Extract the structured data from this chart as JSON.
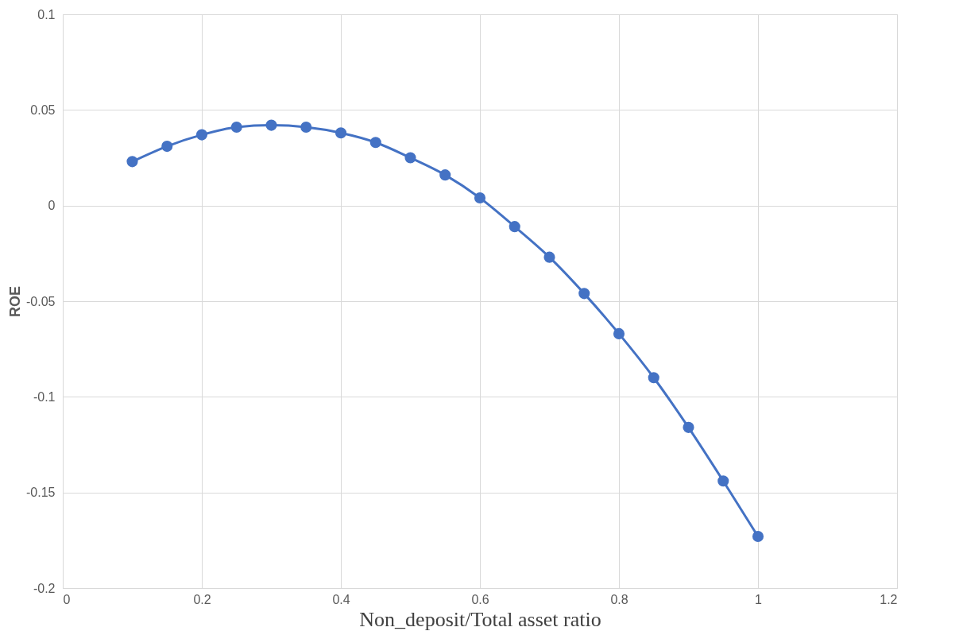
{
  "chart_data": {
    "type": "line",
    "xlabel": "Non_deposit/Total asset ratio",
    "ylabel": "ROE",
    "x": [
      0.1,
      0.15,
      0.2,
      0.25,
      0.3,
      0.35,
      0.4,
      0.45,
      0.5,
      0.55,
      0.6,
      0.65,
      0.7,
      0.75,
      0.8,
      0.85,
      0.9,
      0.95,
      1.0
    ],
    "series": [
      {
        "color": "#4472c4",
        "values": [
          0.023,
          0.031,
          0.037,
          0.041,
          0.042,
          0.041,
          0.038,
          0.033,
          0.025,
          0.016,
          0.004,
          -0.011,
          -0.027,
          -0.046,
          -0.067,
          -0.09,
          -0.116,
          -0.144,
          -0.173
        ]
      }
    ],
    "xlim": [
      0,
      1.2
    ],
    "xticks": [
      0,
      0.2,
      0.4,
      0.6,
      0.8,
      1,
      1.2
    ],
    "ylim": [
      -0.2,
      0.1
    ],
    "yticks": [
      -0.2,
      -0.15,
      -0.1,
      -0.05,
      0,
      0.05,
      0.1
    ],
    "grid": true,
    "marker": "circle",
    "line_style": "solid"
  }
}
